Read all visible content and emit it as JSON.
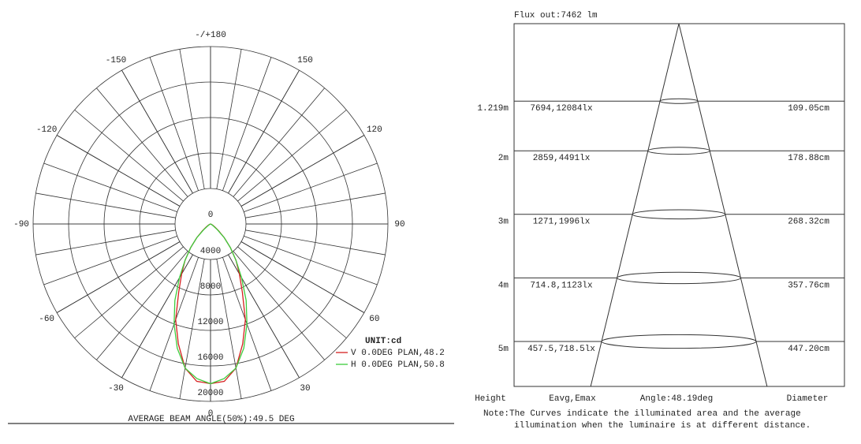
{
  "chart_data": [
    {
      "type": "polar",
      "angle_ticks": [
        {
          "value": 180,
          "label": "-/+180"
        },
        150,
        120,
        90,
        60,
        30,
        0,
        -30,
        -60,
        -90,
        -120,
        -150
      ],
      "rlim": [
        0,
        20000
      ],
      "rticks": [
        0,
        4000,
        8000,
        12000,
        16000,
        20000
      ],
      "legend_title": "UNIT:cd",
      "x": [
        -90,
        -85,
        -80,
        -75,
        -70,
        -65,
        -60,
        -55,
        -50,
        -45,
        -40,
        -35,
        -30,
        -25,
        -20,
        -15,
        -10,
        -5,
        0,
        5,
        10,
        15,
        20,
        25,
        30,
        35,
        40,
        45,
        50,
        55,
        60,
        65,
        70,
        75,
        80,
        85,
        90
      ],
      "series": [
        {
          "name": "V 0.0DEG PLAN,48.2",
          "color": "#d62020",
          "values": [
            0,
            0,
            0,
            0,
            50,
            150,
            300,
            600,
            1200,
            2200,
            3500,
            5000,
            6500,
            8500,
            11500,
            14000,
            16500,
            17800,
            18000,
            17800,
            16500,
            14000,
            11500,
            8500,
            6500,
            5000,
            3500,
            2200,
            1200,
            600,
            300,
            150,
            50,
            0,
            0,
            0,
            0
          ]
        },
        {
          "name": "H 0.0DEG PLAN,50.8",
          "color": "#3ccc3c",
          "values": [
            0,
            0,
            0,
            0,
            0,
            50,
            150,
            400,
            1000,
            2200,
            3500,
            5000,
            7000,
            9500,
            12000,
            14500,
            16500,
            17500,
            18000,
            17500,
            16500,
            14500,
            12000,
            9500,
            7000,
            5000,
            3500,
            2200,
            1000,
            400,
            150,
            50,
            0,
            0,
            0,
            0,
            0
          ]
        }
      ],
      "footer": "AVERAGE BEAM ANGLE(50%):49.5 DEG"
    },
    {
      "type": "cone",
      "title": "Flux out:7462 lm",
      "heights": [
        {
          "value": 1.219,
          "label": "1.219m"
        },
        {
          "value": 2,
          "label": "2m"
        },
        {
          "value": 3,
          "label": "3m"
        },
        {
          "value": 4,
          "label": "4m"
        },
        {
          "value": 5,
          "label": "5m"
        }
      ],
      "illuminance": [
        "7694,12084lx",
        "2859,4491lx",
        "1271,1996lx",
        "714.8,1123lx",
        "457.5,718.5lx"
      ],
      "diameters": [
        {
          "value": 109.05,
          "label": "109.05cm"
        },
        {
          "value": 178.88,
          "label": "178.88cm"
        },
        {
          "value": 268.32,
          "label": "268.32cm"
        },
        {
          "value": 357.76,
          "label": "357.76cm"
        },
        {
          "value": 447.2,
          "label": "447.20cm"
        }
      ],
      "headers": [
        "Height",
        "Eavg,Emax",
        "Angle:48.19deg",
        "Diameter"
      ],
      "note": [
        "Note:The Curves indicate the illuminated area and the average",
        "illumination when the luminaire is at different distance."
      ]
    }
  ]
}
